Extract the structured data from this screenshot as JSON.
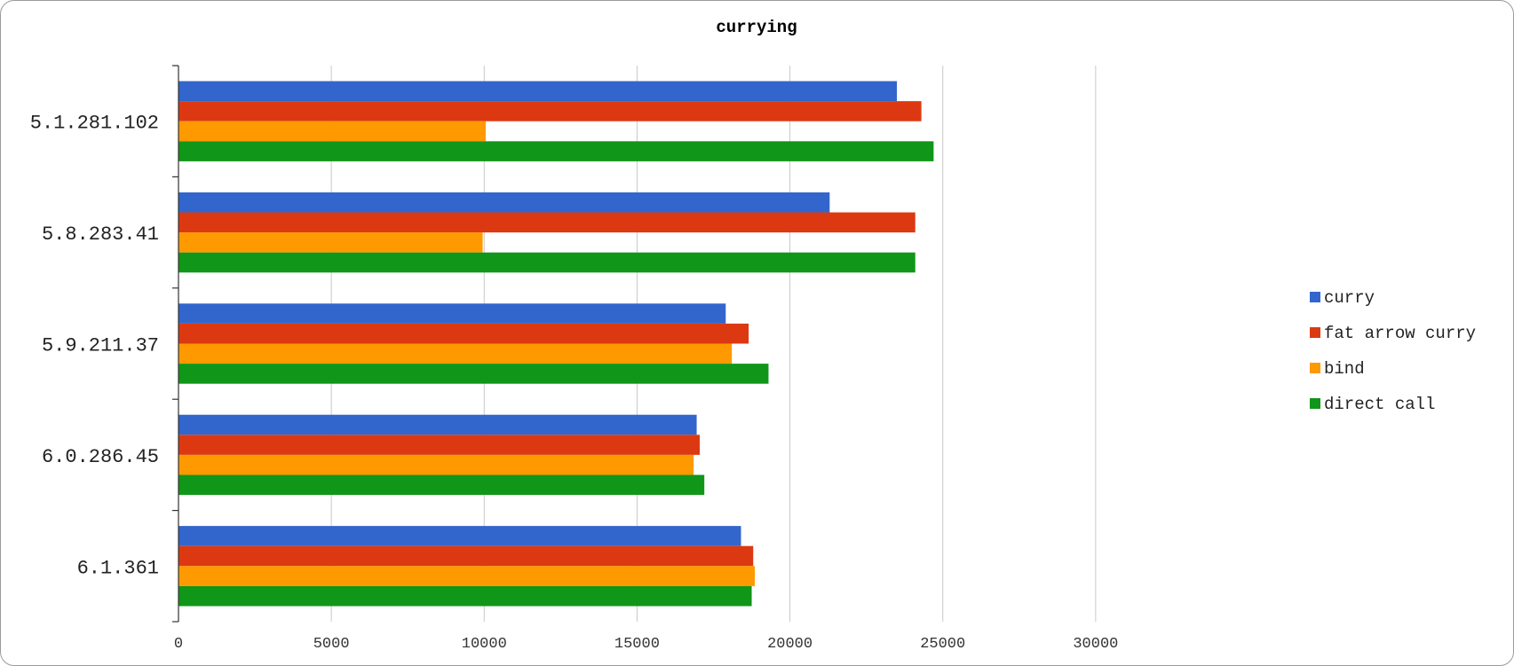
{
  "chart_data": {
    "type": "bar",
    "orientation": "horizontal",
    "title": "currying",
    "xlabel": "",
    "ylabel": "",
    "xlim": [
      0,
      35000
    ],
    "x_ticks": [
      0,
      5000,
      10000,
      15000,
      20000,
      25000,
      30000
    ],
    "grid": true,
    "legend_position": "right",
    "categories": [
      "5.1.281.102",
      "5.8.283.41",
      "5.9.211.37",
      "6.0.286.45",
      "6.1.361"
    ],
    "series": [
      {
        "name": "curry",
        "color": "#3366cc",
        "values": [
          23500,
          21300,
          17900,
          16950,
          18400
        ]
      },
      {
        "name": "fat arrow curry",
        "color": "#dc3912",
        "values": [
          24300,
          24100,
          18650,
          17050,
          18800
        ]
      },
      {
        "name": "bind",
        "color": "#ff9900",
        "values": [
          10050,
          9950,
          18100,
          16850,
          18850
        ]
      },
      {
        "name": "direct call",
        "color": "#109618",
        "values": [
          24700,
          24100,
          19300,
          17200,
          18750
        ]
      }
    ]
  }
}
